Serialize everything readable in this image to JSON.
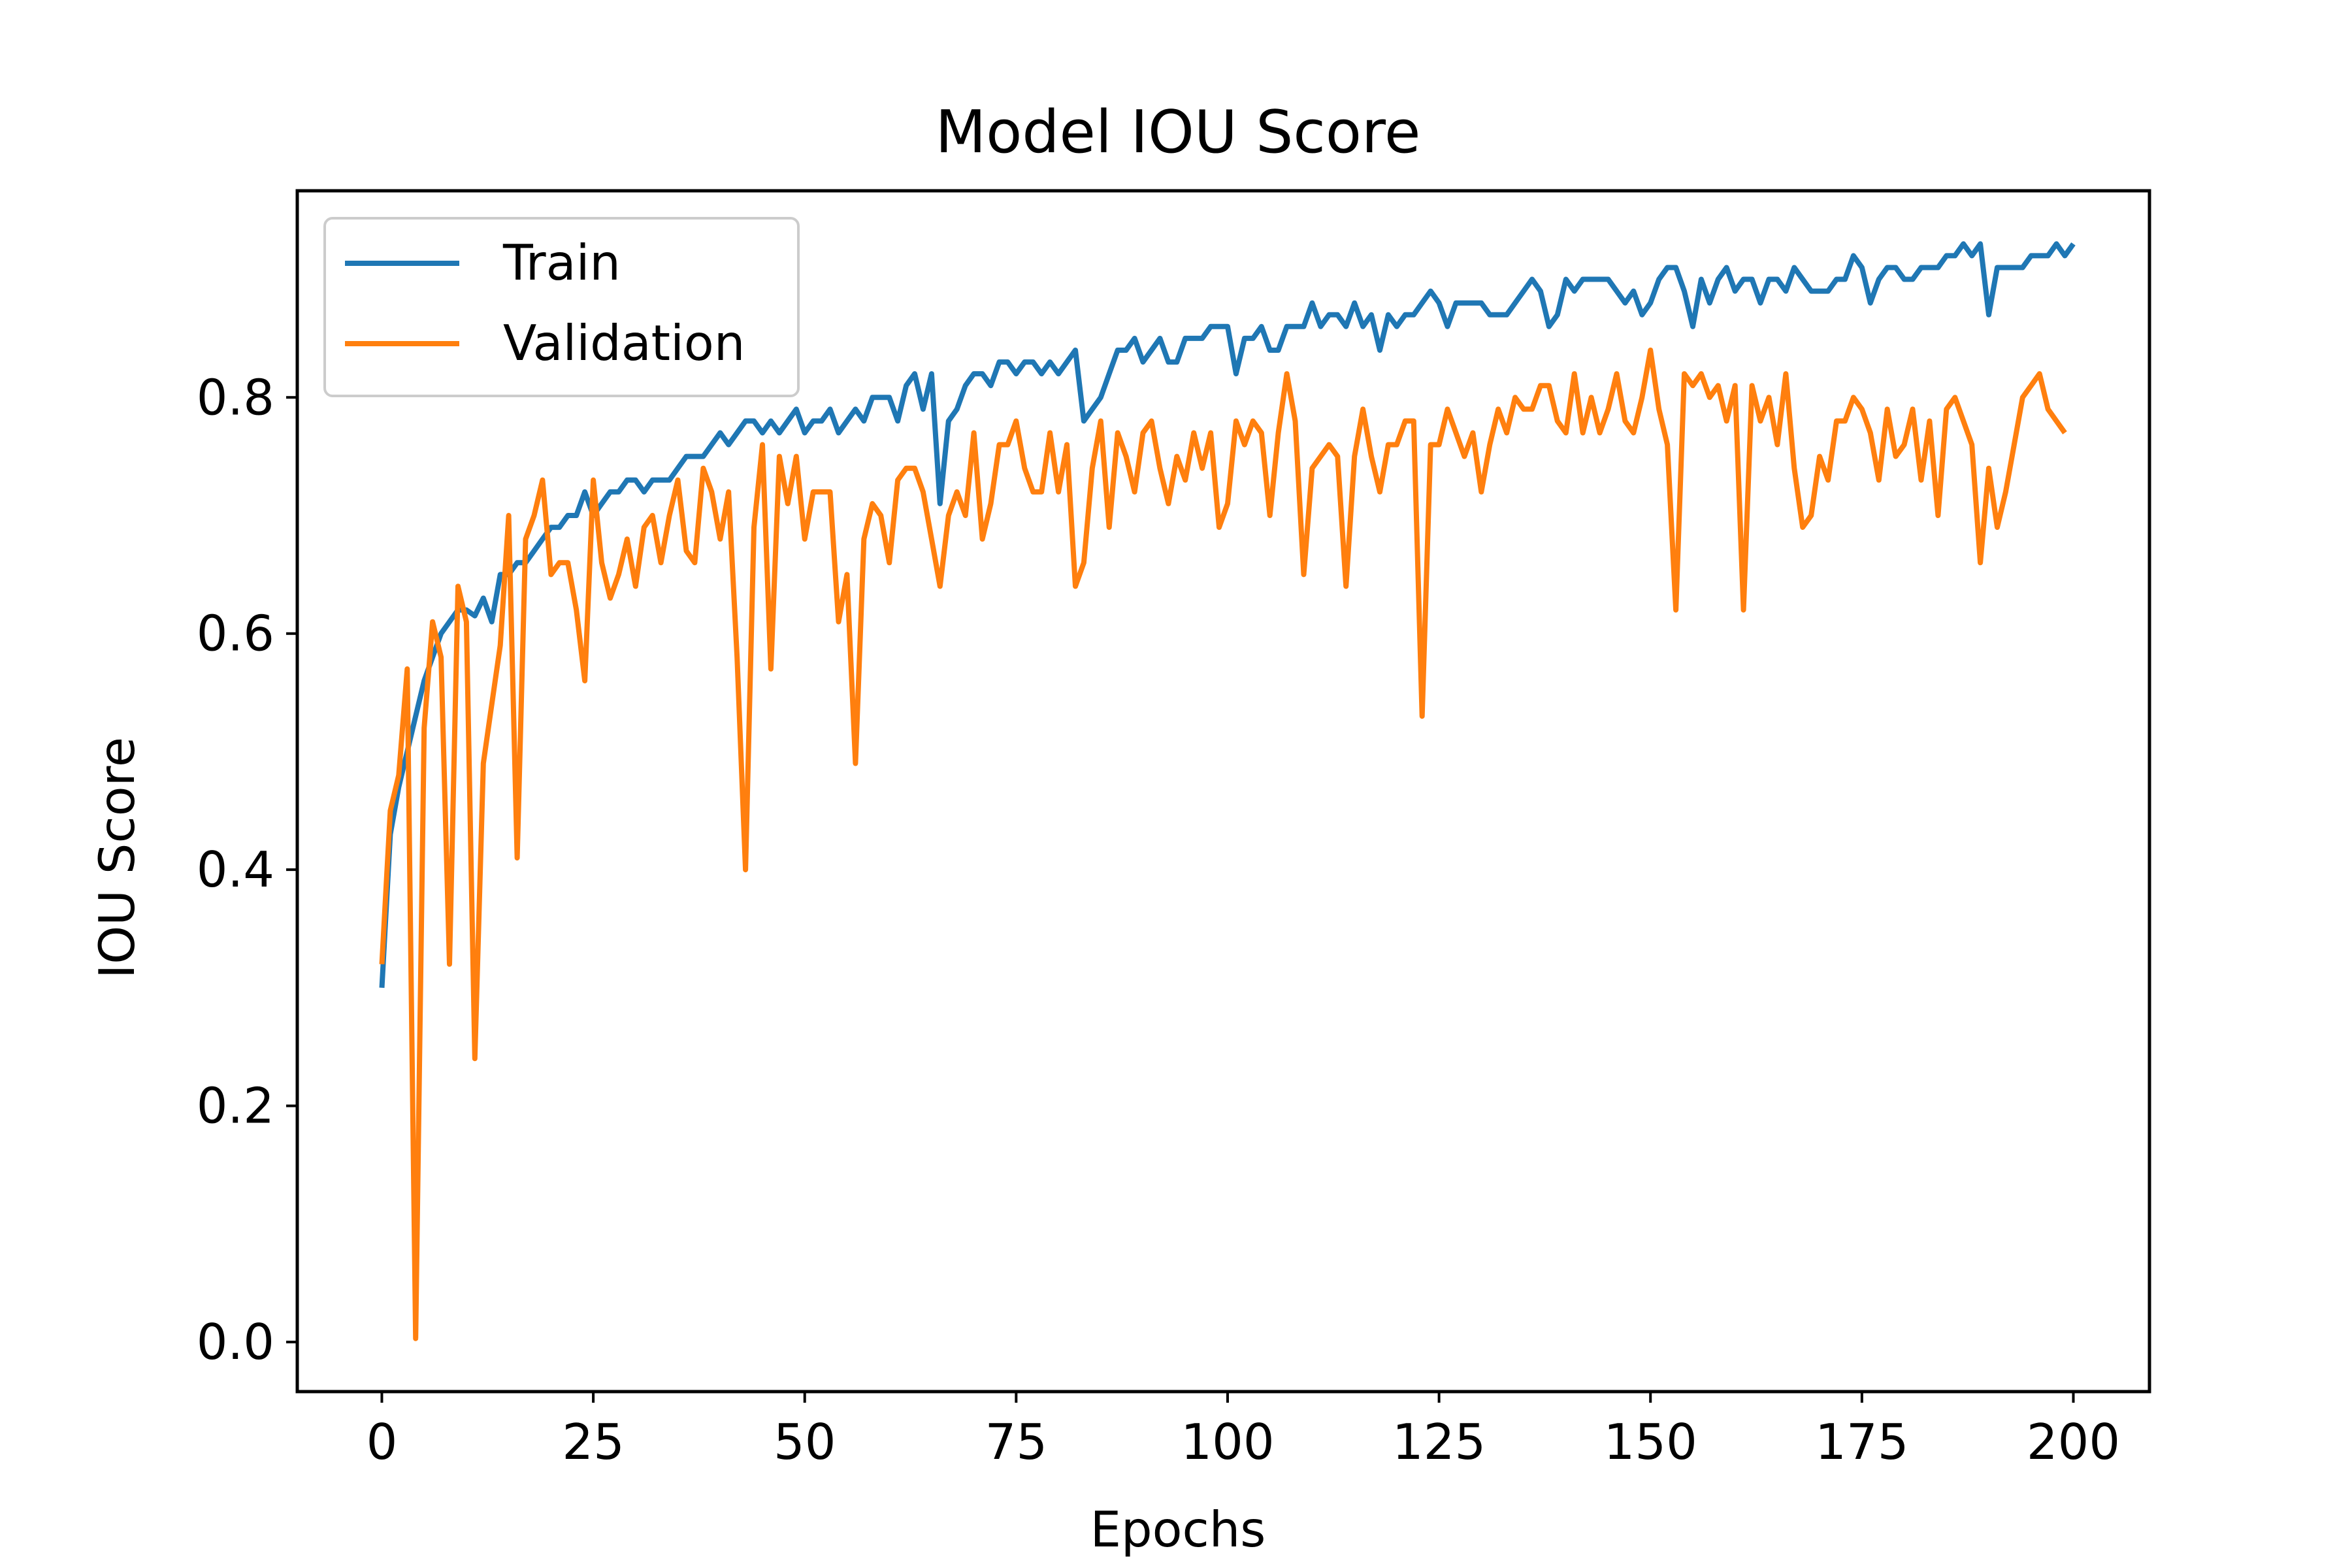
{
  "chart_data": {
    "type": "line",
    "title": "Model IOU Score",
    "xlabel": "Epochs",
    "ylabel": "IOU Score",
    "xlim": [
      -10,
      209
    ],
    "ylim": [
      -0.042,
      0.975
    ],
    "xticks": [
      0,
      25,
      50,
      75,
      100,
      125,
      150,
      175,
      200
    ],
    "yticks": [
      0.0,
      0.2,
      0.4,
      0.6,
      0.8
    ],
    "xtick_labels": [
      "0",
      "25",
      "50",
      "75",
      "100",
      "125",
      "150",
      "175",
      "200"
    ],
    "ytick_labels": [
      "0.0",
      "0.2",
      "0.4",
      "0.6",
      "0.8"
    ],
    "grid": false,
    "legend_position": "upper-left",
    "series": [
      {
        "name": "Train",
        "color": "#1f77b4",
        "values": [
          0.3,
          0.43,
          0.47,
          0.5,
          0.53,
          0.56,
          0.58,
          0.6,
          0.61,
          0.62,
          0.62,
          0.615,
          0.63,
          0.61,
          0.65,
          0.65,
          0.66,
          0.66,
          0.67,
          0.68,
          0.69,
          0.69,
          0.7,
          0.7,
          0.72,
          0.7,
          0.71,
          0.72,
          0.72,
          0.73,
          0.73,
          0.72,
          0.73,
          0.73,
          0.73,
          0.74,
          0.75,
          0.75,
          0.75,
          0.76,
          0.77,
          0.76,
          0.77,
          0.78,
          0.78,
          0.77,
          0.78,
          0.77,
          0.78,
          0.79,
          0.77,
          0.78,
          0.78,
          0.79,
          0.77,
          0.78,
          0.79,
          0.78,
          0.8,
          0.8,
          0.8,
          0.78,
          0.81,
          0.82,
          0.79,
          0.82,
          0.71,
          0.78,
          0.79,
          0.81,
          0.82,
          0.82,
          0.81,
          0.83,
          0.83,
          0.82,
          0.83,
          0.83,
          0.82,
          0.83,
          0.82,
          0.83,
          0.84,
          0.78,
          0.79,
          0.8,
          0.82,
          0.84,
          0.84,
          0.85,
          0.83,
          0.84,
          0.85,
          0.83,
          0.83,
          0.85,
          0.85,
          0.85,
          0.86,
          0.86,
          0.86,
          0.82,
          0.85,
          0.85,
          0.86,
          0.84,
          0.84,
          0.86,
          0.86,
          0.86,
          0.88,
          0.86,
          0.87,
          0.87,
          0.86,
          0.88,
          0.86,
          0.87,
          0.84,
          0.87,
          0.86,
          0.87,
          0.87,
          0.88,
          0.89,
          0.88,
          0.86,
          0.88,
          0.88,
          0.88,
          0.88,
          0.87,
          0.87,
          0.87,
          0.88,
          0.89,
          0.9,
          0.89,
          0.86,
          0.87,
          0.9,
          0.89,
          0.9,
          0.9,
          0.9,
          0.9,
          0.89,
          0.88,
          0.89,
          0.87,
          0.88,
          0.9,
          0.91,
          0.91,
          0.89,
          0.86,
          0.9,
          0.88,
          0.9,
          0.91,
          0.89,
          0.9,
          0.9,
          0.88,
          0.9,
          0.9,
          0.89,
          0.91,
          0.9,
          0.89,
          0.89,
          0.89,
          0.9,
          0.9,
          0.92,
          0.91,
          0.88,
          0.9,
          0.91,
          0.91,
          0.9,
          0.9,
          0.91,
          0.91,
          0.91,
          0.92,
          0.92,
          0.93,
          0.92,
          0.93,
          0.87,
          0.91,
          0.91,
          0.91,
          0.91,
          0.92,
          0.92,
          0.92,
          0.93,
          0.92,
          0.93
        ]
      },
      {
        "name": "Validation",
        "color": "#ff7f0e",
        "values": [
          0.32,
          0.45,
          0.48,
          0.57,
          0.003,
          0.52,
          0.61,
          0.58,
          0.32,
          0.64,
          0.61,
          0.24,
          0.49,
          0.54,
          0.59,
          0.7,
          0.41,
          0.68,
          0.7,
          0.73,
          0.65,
          0.66,
          0.66,
          0.62,
          0.56,
          0.73,
          0.66,
          0.63,
          0.65,
          0.68,
          0.64,
          0.69,
          0.7,
          0.66,
          0.7,
          0.73,
          0.67,
          0.66,
          0.74,
          0.72,
          0.68,
          0.72,
          0.58,
          0.4,
          0.69,
          0.76,
          0.57,
          0.75,
          0.71,
          0.75,
          0.68,
          0.72,
          0.72,
          0.72,
          0.61,
          0.65,
          0.49,
          0.68,
          0.71,
          0.7,
          0.66,
          0.73,
          0.74,
          0.74,
          0.72,
          0.68,
          0.64,
          0.7,
          0.72,
          0.7,
          0.77,
          0.68,
          0.71,
          0.76,
          0.76,
          0.78,
          0.74,
          0.72,
          0.72,
          0.77,
          0.72,
          0.76,
          0.64,
          0.66,
          0.74,
          0.78,
          0.69,
          0.77,
          0.75,
          0.72,
          0.77,
          0.78,
          0.74,
          0.71,
          0.75,
          0.73,
          0.77,
          0.74,
          0.77,
          0.69,
          0.71,
          0.78,
          0.76,
          0.78,
          0.77,
          0.7,
          0.77,
          0.82,
          0.78,
          0.65,
          0.74,
          0.75,
          0.76,
          0.75,
          0.64,
          0.75,
          0.79,
          0.75,
          0.72,
          0.76,
          0.76,
          0.78,
          0.78,
          0.53,
          0.76,
          0.76,
          0.79,
          0.77,
          0.75,
          0.77,
          0.72,
          0.76,
          0.79,
          0.77,
          0.8,
          0.79,
          0.79,
          0.81,
          0.81,
          0.78,
          0.77,
          0.82,
          0.77,
          0.8,
          0.77,
          0.79,
          0.82,
          0.78,
          0.77,
          0.8,
          0.84,
          0.79,
          0.76,
          0.62,
          0.82,
          0.81,
          0.82,
          0.8,
          0.81,
          0.78,
          0.81,
          0.62,
          0.81,
          0.78,
          0.8,
          0.76,
          0.82,
          0.74,
          0.69,
          0.7,
          0.75,
          0.73,
          0.78,
          0.78,
          0.8,
          0.79,
          0.77,
          0.73,
          0.79,
          0.75,
          0.76,
          0.79,
          0.73,
          0.78,
          0.7,
          0.79,
          0.8,
          0.78,
          0.76,
          0.66,
          0.74,
          0.69,
          0.72,
          0.76,
          0.8,
          0.81,
          0.82,
          0.79,
          0.78,
          0.77
        ]
      }
    ]
  }
}
